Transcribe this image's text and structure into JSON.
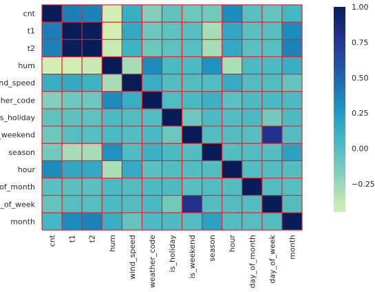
{
  "chart_data": {
    "type": "heatmap",
    "title": "",
    "xlabel": "",
    "ylabel": "",
    "variables": [
      "cnt",
      "t1",
      "t2",
      "hum",
      "wind_speed",
      "weather_code",
      "is_holiday",
      "is_weekend",
      "season",
      "hour",
      "day_of_month",
      "day_of_week",
      "month"
    ],
    "matrix": [
      [
        1.0,
        0.39,
        0.37,
        -0.46,
        0.12,
        -0.17,
        -0.05,
        -0.1,
        -0.12,
        0.32,
        -0.02,
        -0.07,
        0.06
      ],
      [
        0.39,
        1.0,
        0.99,
        -0.45,
        0.15,
        -0.1,
        -0.04,
        -0.01,
        -0.29,
        0.17,
        -0.02,
        -0.01,
        0.32
      ],
      [
        0.37,
        0.99,
        1.0,
        -0.4,
        0.09,
        -0.1,
        -0.04,
        -0.01,
        -0.29,
        0.15,
        -0.02,
        -0.01,
        0.37
      ],
      [
        -0.46,
        -0.45,
        -0.4,
        1.0,
        -0.29,
        0.33,
        0.03,
        0.03,
        0.29,
        -0.3,
        0.03,
        0.03,
        0.12
      ],
      [
        0.12,
        0.15,
        0.09,
        -0.29,
        1.0,
        0.12,
        0.0,
        0.0,
        0.01,
        0.14,
        0.0,
        0.0,
        -0.06
      ],
      [
        -0.17,
        -0.1,
        -0.1,
        0.33,
        0.12,
        1.0,
        0.01,
        0.04,
        0.1,
        -0.03,
        0.02,
        0.04,
        0.03
      ],
      [
        -0.05,
        -0.04,
        -0.04,
        0.03,
        0.0,
        0.01,
        1.0,
        -0.09,
        0.03,
        0.0,
        0.03,
        -0.12,
        0.02
      ],
      [
        -0.1,
        -0.01,
        -0.01,
        0.03,
        0.0,
        0.04,
        -0.09,
        1.0,
        0.0,
        0.0,
        -0.01,
        0.8,
        0.0
      ],
      [
        -0.12,
        -0.29,
        -0.29,
        0.29,
        0.01,
        0.1,
        0.03,
        0.0,
        1.0,
        0.0,
        0.01,
        0.0,
        0.2
      ],
      [
        0.32,
        0.17,
        0.15,
        -0.3,
        0.14,
        -0.03,
        0.0,
        0.0,
        0.0,
        1.0,
        0.0,
        0.0,
        0.0
      ],
      [
        -0.02,
        -0.02,
        -0.02,
        0.03,
        0.0,
        0.02,
        0.03,
        -0.01,
        0.01,
        0.0,
        1.0,
        0.0,
        -0.01
      ],
      [
        -0.07,
        -0.01,
        -0.01,
        0.03,
        0.0,
        0.04,
        -0.12,
        0.8,
        0.0,
        0.0,
        0.0,
        1.0,
        0.0
      ],
      [
        0.06,
        0.32,
        0.37,
        0.12,
        -0.06,
        0.03,
        0.02,
        0.0,
        0.2,
        0.0,
        -0.01,
        0.0,
        1.0
      ]
    ],
    "colorscale": "YlGnBu",
    "vmin": -0.45,
    "vmax": 1.0,
    "colorbar_ticks": [
      "1.00",
      "0.75",
      "0.50",
      "0.25",
      "0.00",
      "−0.25"
    ],
    "colorbar_tick_values": [
      1.0,
      0.75,
      0.5,
      0.25,
      0.0,
      -0.25
    ],
    "cell_border_color": "#e0242c",
    "grid": true,
    "legend": "colorbar-right"
  }
}
